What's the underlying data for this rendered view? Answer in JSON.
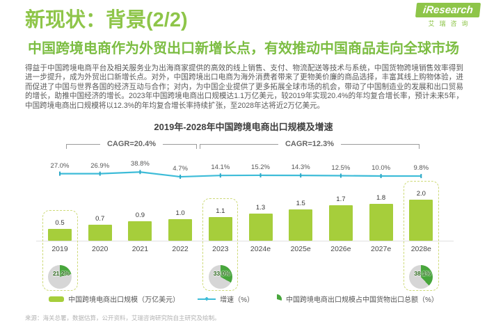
{
  "header": {
    "title": "新现状：背景(2/2)",
    "logo": {
      "brand": "iResearch",
      "brand_cn": "艾瑞咨询"
    },
    "subtitle": "中国跨境电商作为外贸出口新增长点，有效推动中国商品走向全球市场"
  },
  "body_paragraph": "得益于中国跨境电商平台及相关服务业为出海商家提供的高效的线上销售、支付、物流配送等技术与系统，中国货物跨境销售效率得到进一步提升，成为外贸出口新增长点。对外，中国跨境出口电商为海外消费者带来了更物美价廉的商品选择，丰富其线上购物体验，进而促进了中国与世界各国的经济互动与合作；对内，为中国企业提供了更多拓展全球市场的机会，带动了中国制造业的发展和出口贸易的增长，助推中国经济的增长。2023年中国跨境电商出口规模达1.1万亿美元，较2019年实现20.4%的年均复合增长率，预计未来5年，中国跨境电商出口规模将以12.3%的年均复合增长率持续扩张，至2028年达将近2万亿美元。",
  "chart_data": {
    "type": "bar",
    "title": "2019年-2028年中国跨境电商出口规模及增速",
    "categories": [
      "2019",
      "2020",
      "2021",
      "2022",
      "2023",
      "2024e",
      "2025e",
      "2026e",
      "2027e",
      "2028e"
    ],
    "series": [
      {
        "name": "中国跨境电商出口规模（万亿美元）",
        "type": "bar",
        "values": [
          0.5,
          0.7,
          0.9,
          1.0,
          1.1,
          1.3,
          1.5,
          1.7,
          1.8,
          2.0
        ],
        "color": "#a6ce3b"
      },
      {
        "name": "增速（%）",
        "type": "line",
        "values": [
          27.0,
          26.9,
          38.8,
          4.7,
          14.1,
          15.2,
          14.3,
          12.5,
          10.0,
          9.8
        ],
        "color": "#3dbcd8"
      },
      {
        "name": "中国跨境电商出口规模占中国货物出口总额（%）",
        "type": "pie",
        "points": [
          {
            "category": "2019",
            "value": 21.2
          },
          {
            "category": "2023",
            "value": 33.0
          },
          {
            "category": "2028e",
            "value": 38.1
          }
        ],
        "color": "#48a63c",
        "rest_color": "#d6d6d6"
      }
    ],
    "annotations": [
      {
        "label": "CAGR=20.4%",
        "span": [
          "2019",
          "2023"
        ]
      },
      {
        "label": "CAGR=12.3%",
        "span": [
          "2023",
          "2028e"
        ]
      }
    ],
    "highlighted_categories": [
      "2019",
      "2023",
      "2028e"
    ],
    "xlabel": "",
    "ylabel": "",
    "grid": false,
    "legend_position": "bottom"
  },
  "legend": {
    "items": [
      {
        "label": "中国跨境电商出口规模（万亿美元）",
        "marker": "bar-swatch",
        "color": "#a6ce3b"
      },
      {
        "label": "增速（%）",
        "marker": "line-swatch",
        "color": "#3dbcd8"
      },
      {
        "label": "中国跨境电商出口规模占中国货物出口总额（%）",
        "marker": "pie-swatch",
        "color": "#48a63c"
      }
    ]
  },
  "source_note": "来源：海关总署，数据估算，公开资料，艾瑞咨询研究院自主研究及绘制。",
  "colors": {
    "accent_green": "#8ec549",
    "bar_green": "#a6ce3b",
    "line_cyan": "#3dbcd8",
    "pie_green": "#48a63c",
    "pie_gray": "#d6d6d6",
    "highlight_dash": "#cdda77"
  }
}
